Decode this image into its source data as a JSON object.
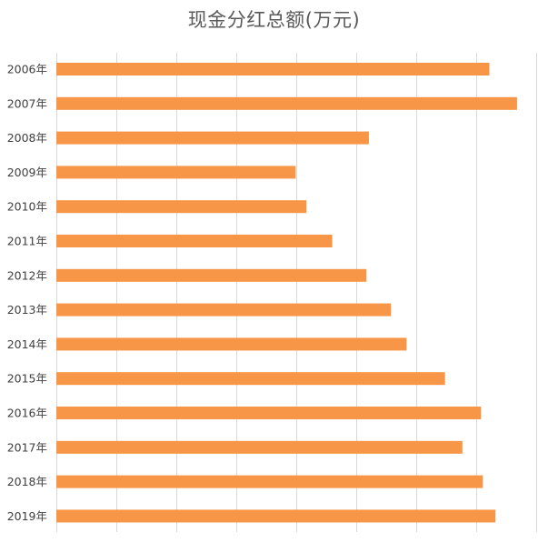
{
  "chart_data": {
    "type": "bar",
    "orientation": "horizontal",
    "title": "现金分红总额(万元)",
    "categories": [
      "2006年",
      "2007年",
      "2008年",
      "2009年",
      "2010年",
      "2011年",
      "2012年",
      "2013年",
      "2014年",
      "2015年",
      "2016年",
      "2017年",
      "2018年",
      "2019年"
    ],
    "series": [
      {
        "values": [
          7220,
          7680,
          5210,
          3990,
          4170,
          4600,
          5170,
          5580,
          5840,
          6480,
          7080,
          6770,
          7110,
          7320
        ]
      }
    ],
    "xlim": [
      0,
      8000
    ],
    "xticks_count": 8,
    "xlabel": "",
    "ylabel": "",
    "grid": true,
    "show_x_tick_labels": false,
    "bar_color": "#F79646",
    "grid_color": "#D9D9D9",
    "title_color": "#595959",
    "label_color": "#404040"
  }
}
